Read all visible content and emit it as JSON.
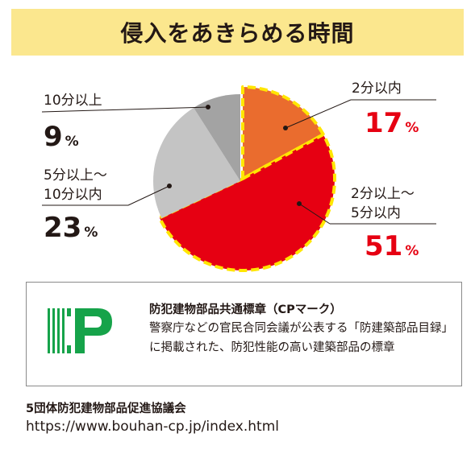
{
  "title": "侵入をあきらめる時間",
  "chart_data": {
    "type": "pie",
    "title": "侵入をあきらめる時間",
    "slices": [
      {
        "label": "2分以内",
        "value": 17,
        "unit": "%",
        "color": "#ea6c2e"
      },
      {
        "label": "2分以上～5分以内",
        "value": 51,
        "unit": "%",
        "color": "#e60012"
      },
      {
        "label": "5分以上～10分以内",
        "value": 23,
        "unit": "%",
        "color": "#c4c4c4"
      },
      {
        "label": "10分以上",
        "value": 9,
        "unit": "%",
        "color": "#a3a3a3"
      }
    ],
    "highlighted": [
      "2分以内",
      "2分以上～5分以内"
    ],
    "highlight_color": "#ffe600"
  },
  "labels": {
    "within2": {
      "line1": "2分以内",
      "value": "17",
      "unit": "%"
    },
    "between2and5": {
      "line1": "2分以上～",
      "line2": "5分以内",
      "value": "51",
      "unit": "%"
    },
    "between5and10": {
      "line1": "5分以上～",
      "line2": "10分以内",
      "value": "23",
      "unit": "%"
    },
    "over10": {
      "line1": "10分以上",
      "value": "9",
      "unit": "%"
    }
  },
  "cp_box": {
    "logo_icon": "cp-mark-logo",
    "logo_color": "#16a34a",
    "heading": "防犯建物部品共通標章（CPマーク）",
    "description": "警察庁などの官民合同会議が公表する「防建築部品目録」に掲載された、防犯性能の高い建築部品の標章"
  },
  "footer": {
    "organization": "5団体防犯建物部品促進協議会",
    "url": "https://www.bouhan-cp.jp/index.html"
  }
}
